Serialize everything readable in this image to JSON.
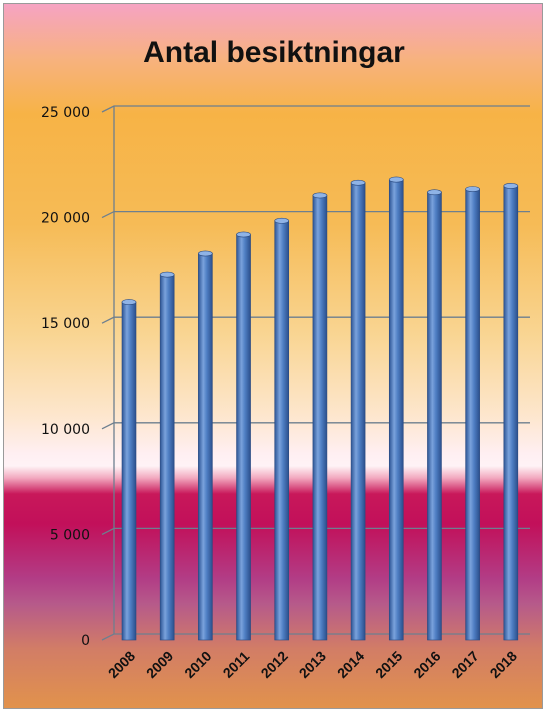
{
  "chart_data": {
    "type": "bar",
    "title": "Antal besiktningar",
    "categories": [
      "2008",
      "2009",
      "2010",
      "2011",
      "2012",
      "2013",
      "2014",
      "2015",
      "2016",
      "2017",
      "2018"
    ],
    "values": [
      16000,
      17300,
      18300,
      19200,
      19850,
      21050,
      21650,
      21800,
      21200,
      21350,
      21500
    ],
    "ylim": [
      0,
      25000
    ],
    "yticks": [
      0,
      5000,
      10000,
      15000,
      20000,
      25000
    ],
    "ytick_labels": [
      "0",
      "5 000",
      "10 000",
      "15 000",
      "20 000",
      "25 000"
    ],
    "grid": true,
    "legend": "none",
    "colors": {
      "bar": "#4f7fc4",
      "bar_dark": "#2d5595",
      "bar_light": "#8fb3e6",
      "grid": "#6d7f8f"
    }
  }
}
